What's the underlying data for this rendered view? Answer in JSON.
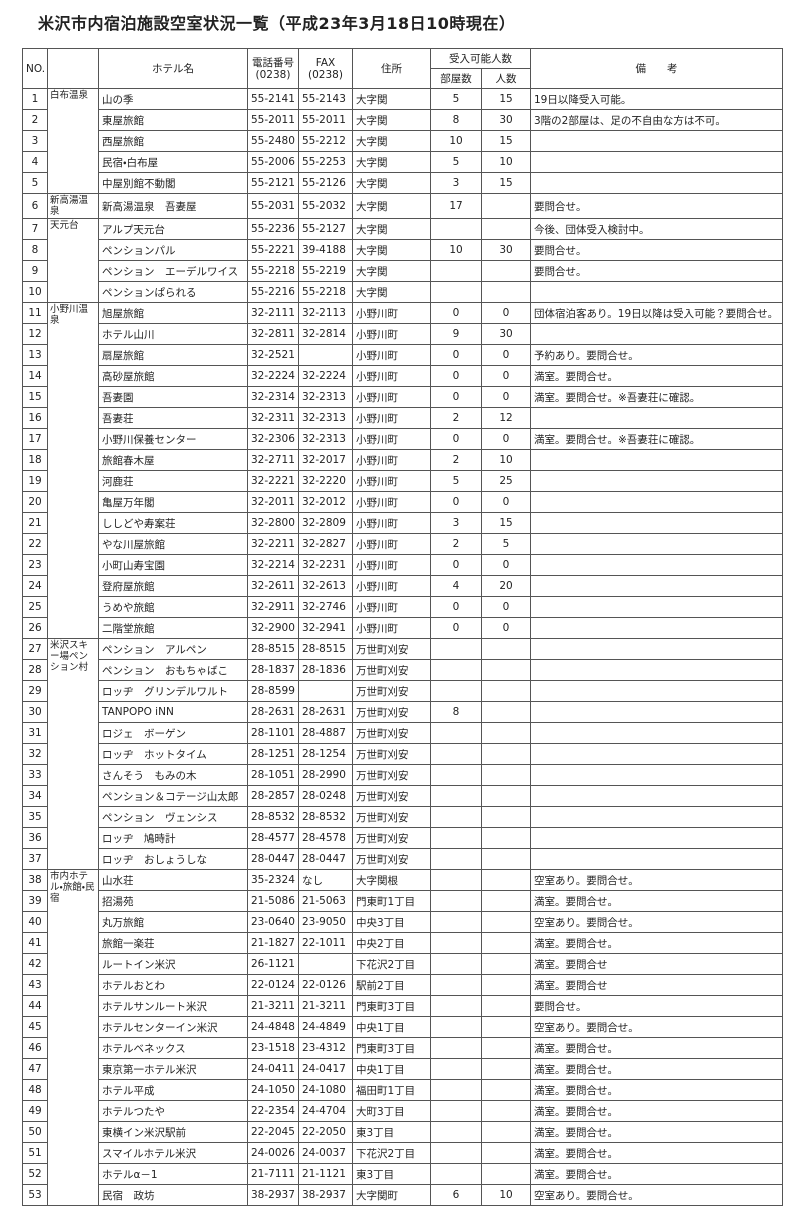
{
  "title": "米沢市内宿泊施設空室状況一覧（平成23年3月18日10時現在）",
  "table": {
    "headers": {
      "no": "NO.",
      "name": "ホテル名",
      "tel": "電話番号",
      "tel_code": "(0238)",
      "fax": "FAX",
      "fax_code": "(0238)",
      "address": "住所",
      "capacity": "受入可能人数",
      "rooms": "部屋数",
      "people": "人数",
      "note": "備　　考"
    },
    "groups": [
      {
        "area": "白布温泉",
        "hotels": [
          {
            "no": 1,
            "name": "山の季",
            "tel": "55-2141",
            "fax": "55-2143",
            "address": "大字関",
            "rooms": 5,
            "people": 15,
            "note": "19日以降受入可能。"
          },
          {
            "no": 2,
            "name": "東屋旅館",
            "tel": "55-2011",
            "fax": "55-2011",
            "address": "大字関",
            "rooms": 8,
            "people": 30,
            "note": "3階の2部屋は、足の不自由な方は不可。"
          },
          {
            "no": 3,
            "name": "西屋旅館",
            "tel": "55-2480",
            "fax": "55-2212",
            "address": "大字関",
            "rooms": 10,
            "people": 15
          },
          {
            "no": 4,
            "name": "民宿・白布屋",
            "tel": "55-2006",
            "fax": "55-2253",
            "address": "大字関",
            "rooms": 5,
            "people": 10
          },
          {
            "no": 5,
            "name": "中屋別館不動閣",
            "tel": "55-2121",
            "fax": "55-2126",
            "address": "大字関",
            "rooms": 3,
            "people": 15
          }
        ]
      },
      {
        "area": "新高湯温泉",
        "hotels": [
          {
            "no": 6,
            "name": "新高湯温泉　吾妻屋",
            "tel": "55-2031",
            "fax": "55-2032",
            "address": "大字関",
            "rooms": 17,
            "note": "要問合せ。"
          }
        ]
      },
      {
        "area": "天元台",
        "hotels": [
          {
            "no": 7,
            "name": "アルプ天元台",
            "tel": "55-2236",
            "fax": "55-2127",
            "address": "大字関",
            "note": "今後、団体受入検討中。"
          },
          {
            "no": 8,
            "name": "ペンションパル",
            "tel": "55-2221",
            "fax": "39-4188",
            "address": "大字関",
            "rooms": 10,
            "people": 30,
            "note": "要問合せ。"
          },
          {
            "no": 9,
            "name": "ペンション　エーデルワイス",
            "tel": "55-2218",
            "fax": "55-2219",
            "address": "大字関",
            "note": "要問合せ。"
          },
          {
            "no": 10,
            "name": "ペンションぱられる",
            "tel": "55-2216",
            "fax": "55-2218",
            "address": "大字関"
          }
        ]
      },
      {
        "area": "小野川温泉",
        "hotels": [
          {
            "no": 11,
            "name": "旭屋旅館",
            "tel": "32-2111",
            "fax": "32-2113",
            "address": "小野川町",
            "rooms": 0,
            "people": 0,
            "note": "団体宿泊客あり。19日以降は受入可能？要問合せ。"
          },
          {
            "no": 12,
            "name": "ホテル山川",
            "tel": "32-2811",
            "fax": "32-2814",
            "address": "小野川町",
            "rooms": 9,
            "people": 30
          },
          {
            "no": 13,
            "name": "扇屋旅館",
            "tel": "32-2521",
            "address": "小野川町",
            "rooms": 0,
            "people": 0,
            "note": "予約あり。要問合せ。"
          },
          {
            "no": 14,
            "name": "高砂屋旅館",
            "tel": "32-2224",
            "fax": "32-2224",
            "address": "小野川町",
            "rooms": 0,
            "people": 0,
            "note": "満室。要問合せ。"
          },
          {
            "no": 15,
            "name": "吾妻園",
            "tel": "32-2314",
            "fax": "32-2313",
            "address": "小野川町",
            "rooms": 0,
            "people": 0,
            "note": "満室。要問合せ。※吾妻荘に確認。"
          },
          {
            "no": 16,
            "name": "吾妻荘",
            "tel": "32-2311",
            "fax": "32-2313",
            "address": "小野川町",
            "rooms": 2,
            "people": 12
          },
          {
            "no": 17,
            "name": "小野川保養センター",
            "tel": "32-2306",
            "fax": "32-2313",
            "address": "小野川町",
            "rooms": 0,
            "people": 0,
            "note": "満室。要問合せ。※吾妻荘に確認。"
          },
          {
            "no": 18,
            "name": "旅館春木屋",
            "tel": "32-2711",
            "fax": "32-2017",
            "address": "小野川町",
            "rooms": 2,
            "people": 10
          },
          {
            "no": 19,
            "name": "河鹿荘",
            "tel": "32-2221",
            "fax": "32-2220",
            "address": "小野川町",
            "rooms": 5,
            "people": 25
          },
          {
            "no": 20,
            "name": "亀屋万年閣",
            "tel": "32-2011",
            "fax": "32-2012",
            "address": "小野川町",
            "rooms": 0,
            "people": 0
          },
          {
            "no": 21,
            "name": "ししどや寿案荘",
            "tel": "32-2800",
            "fax": "32-2809",
            "address": "小野川町",
            "rooms": 3,
            "people": 15
          },
          {
            "no": 22,
            "name": "やな川屋旅館",
            "tel": "32-2211",
            "fax": "32-2827",
            "address": "小野川町",
            "rooms": 2,
            "people": 5
          },
          {
            "no": 23,
            "name": "小町山寿宝園",
            "tel": "32-2214",
            "fax": "32-2231",
            "address": "小野川町",
            "rooms": 0,
            "people": 0
          },
          {
            "no": 24,
            "name": "登府屋旅館",
            "tel": "32-2611",
            "fax": "32-2613",
            "address": "小野川町",
            "rooms": 4,
            "people": 20
          },
          {
            "no": 25,
            "name": "うめや旅館",
            "tel": "32-2911",
            "fax": "32-2746",
            "address": "小野川町",
            "rooms": 0,
            "people": 0
          },
          {
            "no": 26,
            "name": "二階堂旅館",
            "tel": "32-2900",
            "fax": "32-2941",
            "address": "小野川町",
            "rooms": 0,
            "people": 0
          }
        ]
      },
      {
        "area": "米沢スキー場ペンション村",
        "hotels": [
          {
            "no": 27,
            "name": "ペンション　アルペン",
            "tel": "28-8515",
            "fax": "28-8515",
            "address": "万世町刈安"
          },
          {
            "no": 28,
            "name": "ペンション　おもちゃばこ",
            "tel": "28-1837",
            "fax": "28-1836",
            "address": "万世町刈安"
          },
          {
            "no": 29,
            "name": "ロッヂ　グリンデルワルト",
            "tel": "28-8599",
            "address": "万世町刈安"
          },
          {
            "no": 30,
            "name": "TANPOPO iNN",
            "tel": "28-2631",
            "fax": "28-2631",
            "address": "万世町刈安",
            "rooms": 8
          },
          {
            "no": 31,
            "name": "ロジェ　ボーゲン",
            "tel": "28-1101",
            "fax": "28-4887",
            "address": "万世町刈安"
          },
          {
            "no": 32,
            "name": "ロッヂ　ホットタイム",
            "tel": "28-1251",
            "fax": "28-1254",
            "address": "万世町刈安"
          },
          {
            "no": 33,
            "name": "さんそう　もみの木",
            "tel": "28-1051",
            "fax": "28-2990",
            "address": "万世町刈安"
          },
          {
            "no": 34,
            "name": "ペンション＆コテージ山太郎",
            "tel": "28-2857",
            "fax": "28-0248",
            "address": "万世町刈安"
          },
          {
            "no": 35,
            "name": "ペンション　ヴェンシス",
            "tel": "28-8532",
            "fax": "28-8532",
            "address": "万世町刈安"
          },
          {
            "no": 36,
            "name": "ロッヂ　鳩時計",
            "tel": "28-4577",
            "fax": "28-4578",
            "address": "万世町刈安"
          },
          {
            "no": 37,
            "name": "ロッヂ　おしょうしな",
            "tel": "28-0447",
            "fax": "28-0447",
            "address": "万世町刈安"
          }
        ]
      },
      {
        "area": "市内ホテル・旅館・民宿",
        "hotels": [
          {
            "no": 38,
            "name": "山水荘",
            "tel": "35-2324",
            "fax": "なし",
            "address": "大字関根",
            "note": "空室あり。要問合せ。"
          },
          {
            "no": 39,
            "name": "招湯苑",
            "tel": "21-5086",
            "fax": "21-5063",
            "address": "門東町1丁目",
            "note": "満室。要問合せ。"
          },
          {
            "no": 40,
            "name": "丸万旅館",
            "tel": "23-0640",
            "fax": "23-9050",
            "address": "中央3丁目",
            "note": "空室あり。要問合せ。"
          },
          {
            "no": 41,
            "name": "旅館一楽荘",
            "tel": "21-1827",
            "fax": "22-1011",
            "address": "中央2丁目",
            "note": "満室。要問合せ。"
          },
          {
            "no": 42,
            "name": "ルートイン米沢",
            "tel": "26-1121",
            "address": "下花沢2丁目",
            "note": "満室。要問合せ"
          },
          {
            "no": 43,
            "name": "ホテルおとわ",
            "tel": "22-0124",
            "fax": "22-0126",
            "address": "駅前2丁目",
            "note": "満室。要問合せ"
          },
          {
            "no": 44,
            "name": "ホテルサンルート米沢",
            "tel": "21-3211",
            "fax": "21-3211",
            "address": "門東町3丁目",
            "note": "要問合せ。"
          },
          {
            "no": 45,
            "name": "ホテルセンターイン米沢",
            "tel": "24-4848",
            "fax": "24-4849",
            "address": "中央1丁目",
            "note": "空室あり。要問合せ。"
          },
          {
            "no": 46,
            "name": "ホテルベネックス",
            "tel": "23-1518",
            "fax": "23-4312",
            "address": "門東町3丁目",
            "note": "満室。要問合せ。"
          },
          {
            "no": 47,
            "name": "東京第一ホテル米沢",
            "tel": "24-0411",
            "fax": "24-0417",
            "address": "中央1丁目",
            "note": "満室。要問合せ。"
          },
          {
            "no": 48,
            "name": "ホテル平成",
            "tel": "24-1050",
            "fax": "24-1080",
            "address": "福田町1丁目",
            "note": "満室。要問合せ。"
          },
          {
            "no": 49,
            "name": "ホテルつたや",
            "tel": "22-2354",
            "fax": "24-4704",
            "address": "大町3丁目",
            "note": "満室。要問合せ。"
          },
          {
            "no": 50,
            "name": "東横イン米沢駅前",
            "tel": "22-2045",
            "fax": "22-2050",
            "address": "東3丁目",
            "note": "満室。要問合せ。"
          },
          {
            "no": 51,
            "name": "スマイルホテル米沢",
            "tel": "24-0026",
            "fax": "24-0037",
            "address": "下花沢2丁目",
            "note": "満室。要問合せ。"
          },
          {
            "no": 52,
            "name": "ホテルα－1",
            "tel": "21-7111",
            "fax": "21-1121",
            "address": "東3丁目",
            "note": "満室。要問合せ。"
          },
          {
            "no": 53,
            "name": "民宿　政坊",
            "tel": "38-2937",
            "fax": "38-2937",
            "address": "大字関町",
            "rooms": 6,
            "people": 10,
            "note": "空室あり。要問合せ。"
          }
        ]
      }
    ]
  }
}
